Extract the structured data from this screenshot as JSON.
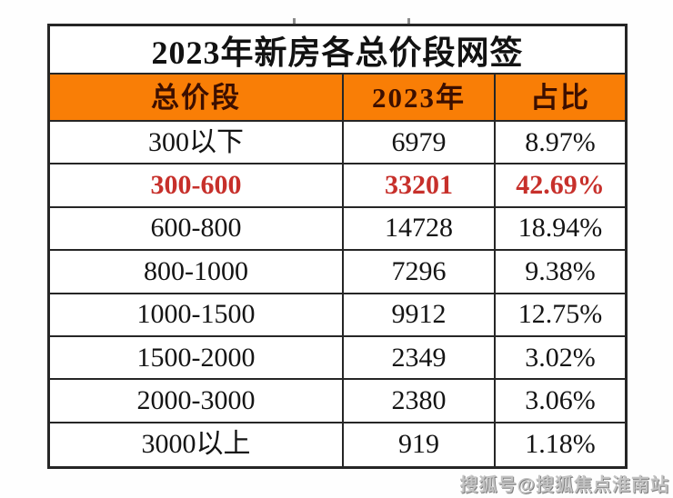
{
  "colors": {
    "header_bg": "#f97e06",
    "header_text": "#3c0f00",
    "highlight_text": "#c7302b",
    "body_text": "#141414",
    "border": "#262626",
    "watermark_text": "#c3c3c3"
  },
  "chart_data": {
    "type": "table",
    "title": "2023年新房各总价段网签",
    "columns": [
      "总价段",
      "2023年",
      "占比"
    ],
    "rows": [
      [
        "300以下",
        6979,
        "8.97%"
      ],
      [
        "300-600",
        33201,
        "42.69%"
      ],
      [
        "600-800",
        14728,
        "18.94%"
      ],
      [
        "800-1000",
        7296,
        "9.38%"
      ],
      [
        "1000-1500",
        9912,
        "12.75%"
      ],
      [
        "1500-2000",
        2349,
        "3.02%"
      ],
      [
        "2000-3000",
        2380,
        "3.06%"
      ],
      [
        "3000以上",
        919,
        "1.18%"
      ]
    ],
    "highlighted_row": "300-600",
    "highlight_style": "red bold text"
  },
  "watermark": {
    "text": "搜狐号@搜狐焦点淮南站"
  }
}
